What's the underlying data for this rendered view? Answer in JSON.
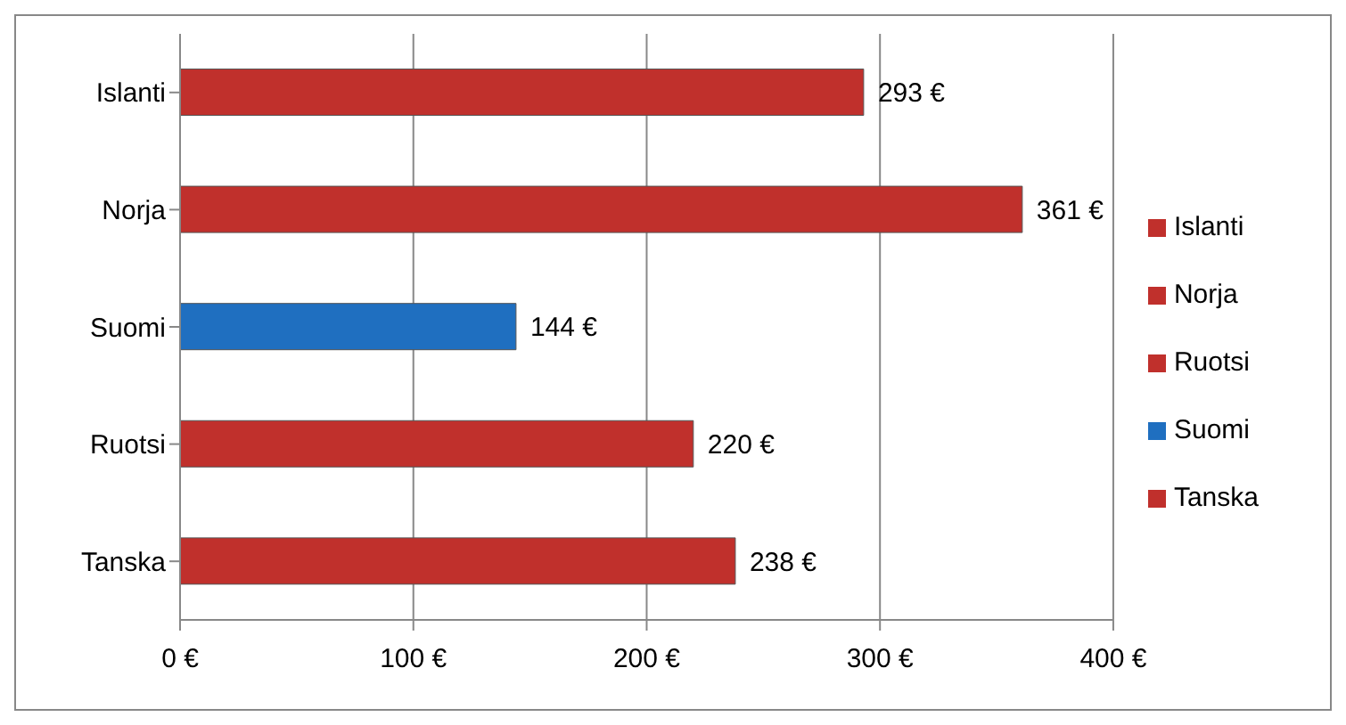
{
  "chart_data": {
    "type": "bar",
    "orientation": "horizontal",
    "stacked": true,
    "categories": [
      "Islanti",
      "Norja",
      "Suomi",
      "Ruotsi",
      "Tanska"
    ],
    "series": [
      {
        "name": "Tanska",
        "color": "#c0302c",
        "values": [
          null,
          null,
          null,
          null,
          238
        ],
        "value_labels": [
          null,
          null,
          null,
          null,
          "238 €"
        ]
      },
      {
        "name": "Ruotsi",
        "color": "#c0302c",
        "values": [
          null,
          null,
          null,
          220,
          null
        ],
        "value_labels": [
          null,
          null,
          null,
          "220 €",
          null
        ]
      },
      {
        "name": "Suomi",
        "color": "#1f6fc0",
        "values": [
          null,
          null,
          144,
          null,
          null
        ],
        "value_labels": [
          null,
          null,
          "144 €",
          null,
          null
        ]
      },
      {
        "name": "Norja",
        "color": "#c0302c",
        "values": [
          null,
          361,
          null,
          null,
          null
        ],
        "value_labels": [
          null,
          "361 €",
          null,
          null,
          null
        ]
      },
      {
        "name": "Islanti",
        "color": "#c0302c",
        "values": [
          293,
          null,
          null,
          null,
          null
        ],
        "value_labels": [
          "293 €",
          null,
          null,
          null,
          null
        ]
      }
    ],
    "xlim": [
      0,
      400
    ],
    "xticks": [
      {
        "value": 0,
        "label": "0 €"
      },
      {
        "value": 100,
        "label": "100 €"
      },
      {
        "value": 200,
        "label": "200 €"
      },
      {
        "value": 300,
        "label": "300 €"
      },
      {
        "value": 400,
        "label": "400 €"
      }
    ],
    "grid": "x",
    "legend": "right"
  }
}
